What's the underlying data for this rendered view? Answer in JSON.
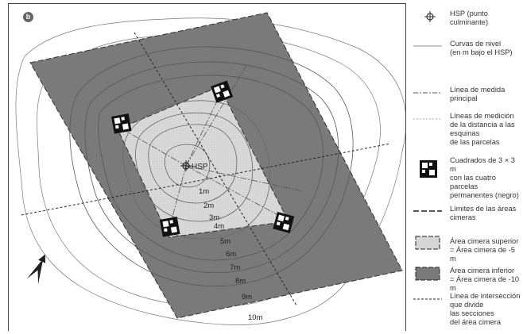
{
  "panel_label": "b",
  "map": {
    "summit_label": "HSP",
    "contour_labels": [
      "1m",
      "2m",
      "3m",
      "4m",
      "5m",
      "6m",
      "7m",
      "8m",
      "9m",
      "10m"
    ]
  },
  "legend": [
    {
      "id": "hsp",
      "text": "HSP (punto\nculminante)"
    },
    {
      "id": "contour",
      "text": "Curvas de nivel\n(en m bajo el HSP)"
    },
    {
      "id": "main-line",
      "text": "Línea de medida\nprincipal"
    },
    {
      "id": "corner-lines",
      "text": "Líneas de medición\nde la distancia a las\nesquinas\nde las parcelas"
    },
    {
      "id": "squares",
      "text": "Cuadrados de 3 × 3 m\ncon las cuatro parcelas\npermanentes (negro)"
    },
    {
      "id": "summit-limits",
      "text": "Límites de las áreas\ncimeras"
    },
    {
      "id": "upper-area",
      "text": "Área cimera superior\n= Área cimera de -5 m"
    },
    {
      "id": "lower-area",
      "text": "Área cimera inferior\n= Área cimera de -10 m"
    },
    {
      "id": "intersection",
      "text": "Línea de intersección\nque divide\nlas secciones\ndel área cimera"
    }
  ],
  "colors": {
    "lower_area": "#7a7a7a",
    "upper_area": "#d6d6d6",
    "contour": "#666666",
    "line": "#333333"
  },
  "icons": {
    "north": "north-arrow-icon",
    "summit": "summit-marker-icon",
    "plot": "plot-square-icon"
  }
}
